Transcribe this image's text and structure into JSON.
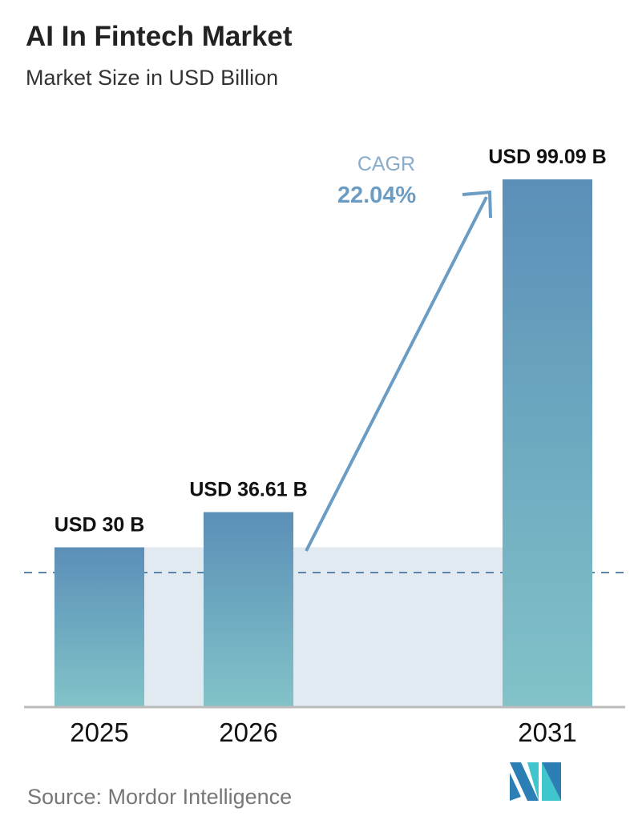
{
  "chart_data": {
    "type": "bar",
    "title": "AI In Fintech Market",
    "subtitle": "Market Size in USD Billion",
    "categories": [
      "2025",
      "2026",
      "2031"
    ],
    "values": [
      30,
      36.61,
      99.09
    ],
    "data_labels": [
      "USD 30 B",
      "USD 36.61 B",
      "USD 99.09 B"
    ],
    "annotation": {
      "label": "CAGR",
      "value": "22.04%"
    },
    "ylim": [
      0,
      99.09
    ],
    "grid": false,
    "colors": {
      "bar_top": "#5b8fb8",
      "bar_bottom": "#82c3c8",
      "shade": "#e1e9f1",
      "arrow": "#6a9cc4"
    }
  },
  "source": "Source:  Mordor Intelligence"
}
